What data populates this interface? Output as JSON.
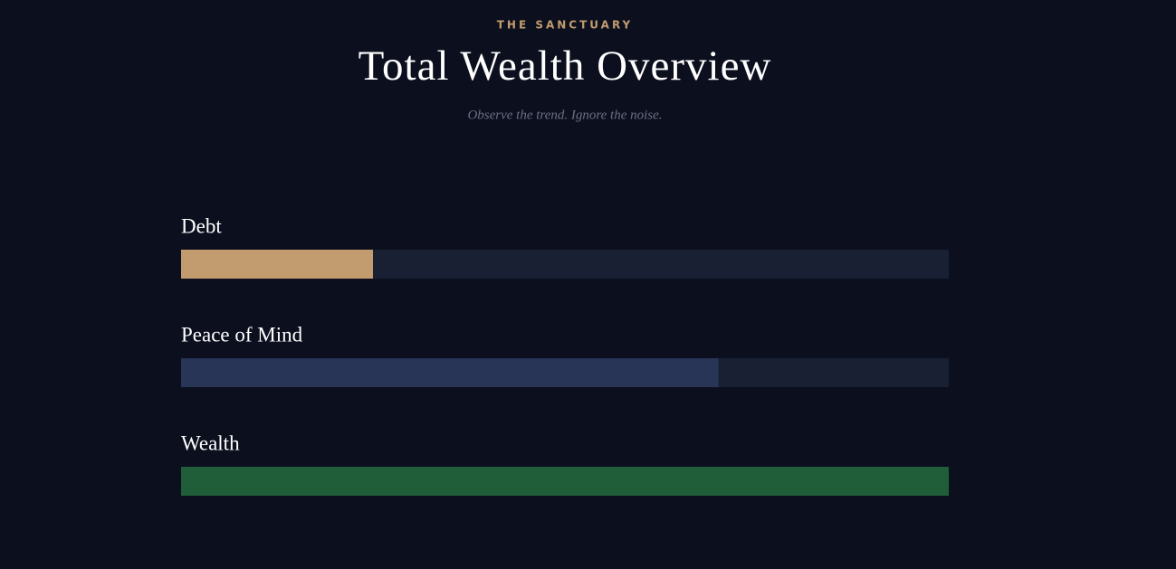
{
  "chart_data": {
    "type": "progress",
    "eyebrow": "THE SANCTUARY",
    "title": "Total Wealth Overview",
    "subtitle": "Observe the trend. Ignore the noise.",
    "categories": [
      "Debt",
      "Peace of Mind",
      "Wealth"
    ],
    "values": [
      25,
      70,
      100
    ],
    "colors": [
      "#c29c6f",
      "#283556",
      "#1f5e38"
    ],
    "track_color": "#1a2034",
    "xlim": [
      0,
      100
    ]
  }
}
